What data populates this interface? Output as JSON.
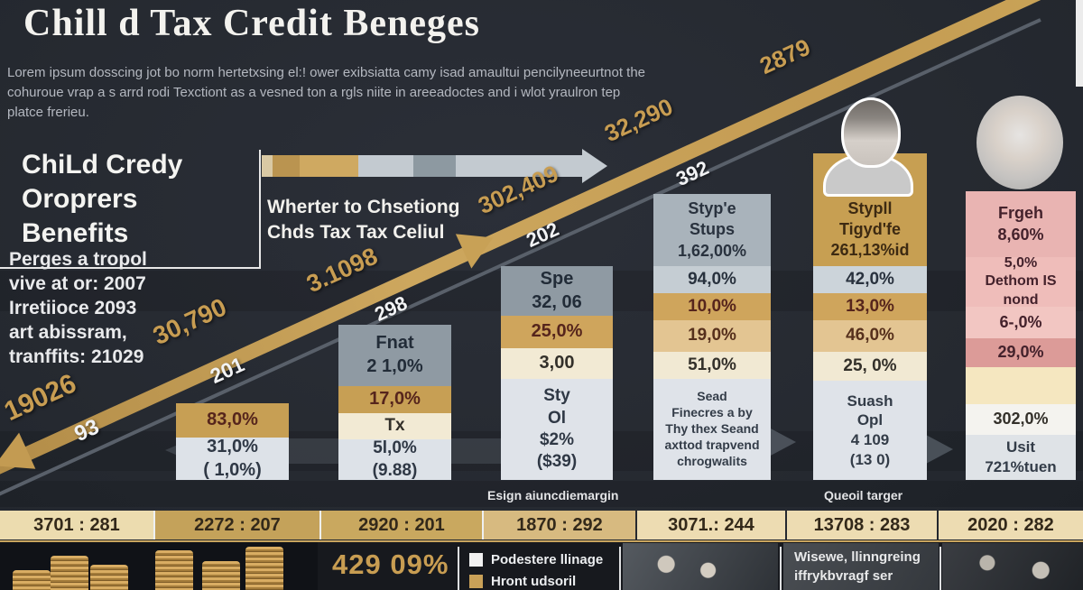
{
  "header": {
    "title": "Chill d Tax Credit Beneges",
    "subtitle_lines": [
      "Lorem ipsum dosscing jot bo norm hertetxsing el:! ower exibsiatta camy isad amaultui pencilyneeurtnot the",
      "cohuroue vrap a s arrd rodi Texctiont as a vesned ton a rgls niite in areeadoctes and i wlot yraulron tep",
      "platce frerieu."
    ]
  },
  "left_panel": {
    "heading_lines": [
      "ChiLd Credy",
      "Oroprers",
      "Benefits"
    ],
    "paragraph_lines": [
      "Perges a tropol",
      "vive at or: 2007",
      "Irretiioce 2093",
      "art abissram,",
      "tranffits: 21029"
    ]
  },
  "arrow_caption_lines": [
    "Wherter to Chsetiong",
    "Chds Tax Tax Celiul"
  ],
  "section_labels": {
    "baseline_left": "Esign aiuncdiemargin",
    "baseline_right": "Queoil targer"
  },
  "chart_data": {
    "type": "bar",
    "subtype": "stacked-infographic-columns-with-trend-arrow",
    "title": "Chill d Tax Credit Beneges",
    "legend_position": "bottom",
    "trend_labels": [
      {
        "text": "19026",
        "color": "#c89d52"
      },
      {
        "text": "93",
        "color": "#f2f3f5"
      },
      {
        "text": "30,790",
        "color": "#c89d52"
      },
      {
        "text": "201",
        "color": "#f2f3f5"
      },
      {
        "text": "3.1098",
        "color": "#c89d52"
      },
      {
        "text": "298",
        "color": "#f2f3f5"
      },
      {
        "text": "302,409",
        "color": "#c89d52"
      },
      {
        "text": "202",
        "color": "#f2f3f5"
      },
      {
        "text": "32,290",
        "color": "#c89d52"
      },
      {
        "text": "392",
        "color": "#f2f3f5"
      },
      {
        "text": "2879",
        "color": "#c89d52"
      }
    ],
    "columns": [
      {
        "segments": [
          {
            "lines": [
              "83,0%"
            ],
            "bg": "#c79f54",
            "fg": "#56251c",
            "fs": 20
          },
          {
            "lines": [
              "31,0%",
              "( 1,0%)"
            ],
            "bg": "#dde2e8",
            "fg": "#2f3845",
            "fs": 20
          }
        ]
      },
      {
        "segments": [
          {
            "lines": [
              "Fnat",
              "2 1,0%"
            ],
            "bg": "#8f9aa3",
            "fg": "#222c38",
            "fs": 20
          },
          {
            "lines": [
              "17,0%"
            ],
            "bg": "#c79f54",
            "fg": "#56251c",
            "fs": 20
          },
          {
            "lines": [
              "Tx"
            ],
            "bg": "#f2ead4",
            "fg": "#33302a",
            "fs": 19
          },
          {
            "lines": [
              "5l,0%",
              "(9.88)"
            ],
            "bg": "#dde2e8",
            "fg": "#2f3845",
            "fs": 19
          }
        ]
      },
      {
        "segments": [
          {
            "lines": [
              "Spe",
              "32, 06"
            ],
            "bg": "#8f9aa3",
            "fg": "#222c38",
            "fs": 20
          },
          {
            "lines": [
              "25,0%"
            ],
            "bg": "#cfa55c",
            "fg": "#56251c",
            "fs": 20
          },
          {
            "lines": [
              "3,00"
            ],
            "bg": "#f2ead4",
            "fg": "#33302a",
            "fs": 20
          },
          {
            "lines": [
              "Sty",
              "Ol",
              "$2%",
              "($39)"
            ],
            "bg": "#dfe3e9",
            "fg": "#2f3845",
            "fs": 19
          }
        ]
      },
      {
        "segments": [
          {
            "lines": [
              "Styp'e",
              "Stups",
              "1,62,00%"
            ],
            "bg": "#a9b3bb",
            "fg": "#29323e",
            "fs": 18
          },
          {
            "lines": [
              "94,0%"
            ],
            "bg": "#c5cdd3",
            "fg": "#29323e",
            "fs": 19
          },
          {
            "lines": [
              "10,0%"
            ],
            "bg": "#cfa55c",
            "fg": "#56251c",
            "fs": 19
          },
          {
            "lines": [
              "19,0%"
            ],
            "bg": "#e3c592",
            "fg": "#56301c",
            "fs": 19
          },
          {
            "lines": [
              "51,0%"
            ],
            "bg": "#f1e9d3",
            "fg": "#33302a",
            "fs": 19
          },
          {
            "lines": [
              "Sead",
              "Finecres a by",
              "Thy thex Seand",
              "axttod trapvend",
              "chrogwalits"
            ],
            "bg": "#dfe3e9",
            "fg": "#333c48",
            "fs": 14
          }
        ]
      },
      {
        "segments": [
          {
            "lines": [
              "Stypll",
              "Tigyd'fe",
              "261,13%id"
            ],
            "bg": "#c79f52",
            "fg": "#3d2a12",
            "fs": 18
          },
          {
            "lines": [
              "42,0%"
            ],
            "bg": "#ccd4da",
            "fg": "#29323e",
            "fs": 19
          },
          {
            "lines": [
              "13,0%"
            ],
            "bg": "#cfa55c",
            "fg": "#56251c",
            "fs": 19
          },
          {
            "lines": [
              "46,0%"
            ],
            "bg": "#e3c592",
            "fg": "#56301c",
            "fs": 19
          },
          {
            "lines": [
              "25, 0%"
            ],
            "bg": "#f1e9d3",
            "fg": "#33302a",
            "fs": 19
          },
          {
            "lines": [
              "Suash",
              "Opl",
              "4 109",
              "(13 0)"
            ],
            "bg": "#dfe3e9",
            "fg": "#333c48",
            "fs": 17
          }
        ]
      },
      {
        "segments": [
          {
            "lines": [
              "Frgeh",
              "8,60%"
            ],
            "bg": "#e9b4b2",
            "fg": "#44222c",
            "fs": 18
          },
          {
            "lines": [
              "5,0%",
              "Dethom IS nond"
            ],
            "bg": "#efbdba",
            "fg": "#44222c",
            "fs": 16
          },
          {
            "lines": [
              "6-,0%"
            ],
            "bg": "#f2c6c2",
            "fg": "#44222c",
            "fs": 18
          },
          {
            "lines": [
              "29,0%"
            ],
            "bg": "#dc9b98",
            "fg": "#44222c",
            "fs": 18
          },
          {
            "lines": [],
            "bg": "#f5e7c0",
            "fg": "#44222c",
            "fs": 18
          },
          {
            "lines": [
              "302,0%"
            ],
            "bg": "#f4f3ef",
            "fg": "#33302a",
            "fs": 18
          },
          {
            "lines": [
              "Usit",
              "721%tuen"
            ],
            "bg": "#dfe3e7",
            "fg": "#333c48",
            "fs": 17
          }
        ]
      }
    ],
    "bottom_axis_cells": [
      {
        "text": "3701 : 281",
        "bg": "#ecdcaf"
      },
      {
        "text": "2272 : 207",
        "bg": "#c4a25a"
      },
      {
        "text": "2920 : 201",
        "bg": "#c9a85f"
      },
      {
        "text": "1870 : 292",
        "bg": "#d7ba80"
      },
      {
        "text": "3071.: 244",
        "bg": "#eddcb2"
      },
      {
        "text": "13708 : 283",
        "bg": "#eddcb2"
      },
      {
        "text": "2020 : 282",
        "bg": "#eddcb2"
      }
    ]
  },
  "footer": {
    "big_percent": "429 09%",
    "legend": [
      {
        "label": "Podestere llinage",
        "swatch": "#f2f2f2"
      },
      {
        "label": "Hront udsoril",
        "swatch": "#c9a158"
      }
    ],
    "caption_lines": [
      "Wisewe, llinngreing",
      "iffrykbvragf ser"
    ]
  },
  "accent_colors": {
    "gold": "#c9a158",
    "charcoal": "#272b33",
    "pink": "#e9b4b2"
  }
}
